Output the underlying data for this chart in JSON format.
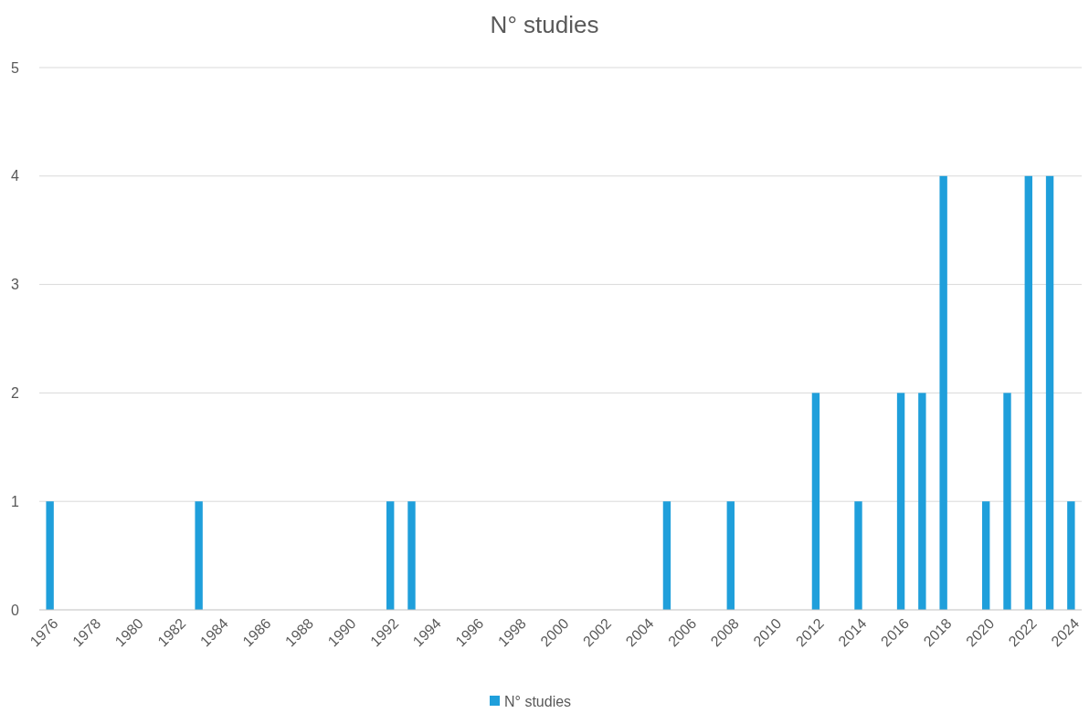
{
  "chart_data": {
    "type": "bar",
    "title": "N° studies",
    "categories": [
      "1976",
      null,
      "1978",
      null,
      "1980",
      null,
      "1982",
      null,
      "1984",
      null,
      "1986",
      null,
      "1988",
      null,
      "1990",
      null,
      "1992",
      null,
      "1994",
      null,
      "1996",
      null,
      "1998",
      null,
      "2000",
      null,
      "2002",
      null,
      "2004",
      null,
      "2006",
      null,
      "2008",
      null,
      "2010",
      null,
      "2012",
      null,
      "2014",
      null,
      "2016",
      null,
      "2018",
      null,
      "2020",
      null,
      "2022",
      null,
      "2024"
    ],
    "series": [
      {
        "name": "N° studies",
        "color": "#1f9fdb",
        "values": [
          1,
          0,
          0,
          0,
          0,
          0,
          0,
          1,
          0,
          0,
          0,
          0,
          0,
          0,
          0,
          0,
          1,
          1,
          0,
          0,
          0,
          0,
          0,
          0,
          0,
          0,
          0,
          0,
          0,
          1,
          0,
          0,
          1,
          0,
          0,
          0,
          2,
          0,
          1,
          0,
          2,
          2,
          4,
          0,
          1,
          2,
          4,
          4,
          1
        ]
      }
    ],
    "ylim": [
      0,
      5
    ],
    "yticks": [
      0,
      1,
      2,
      3,
      4,
      5
    ],
    "grid": "y",
    "legend": "bottom"
  }
}
